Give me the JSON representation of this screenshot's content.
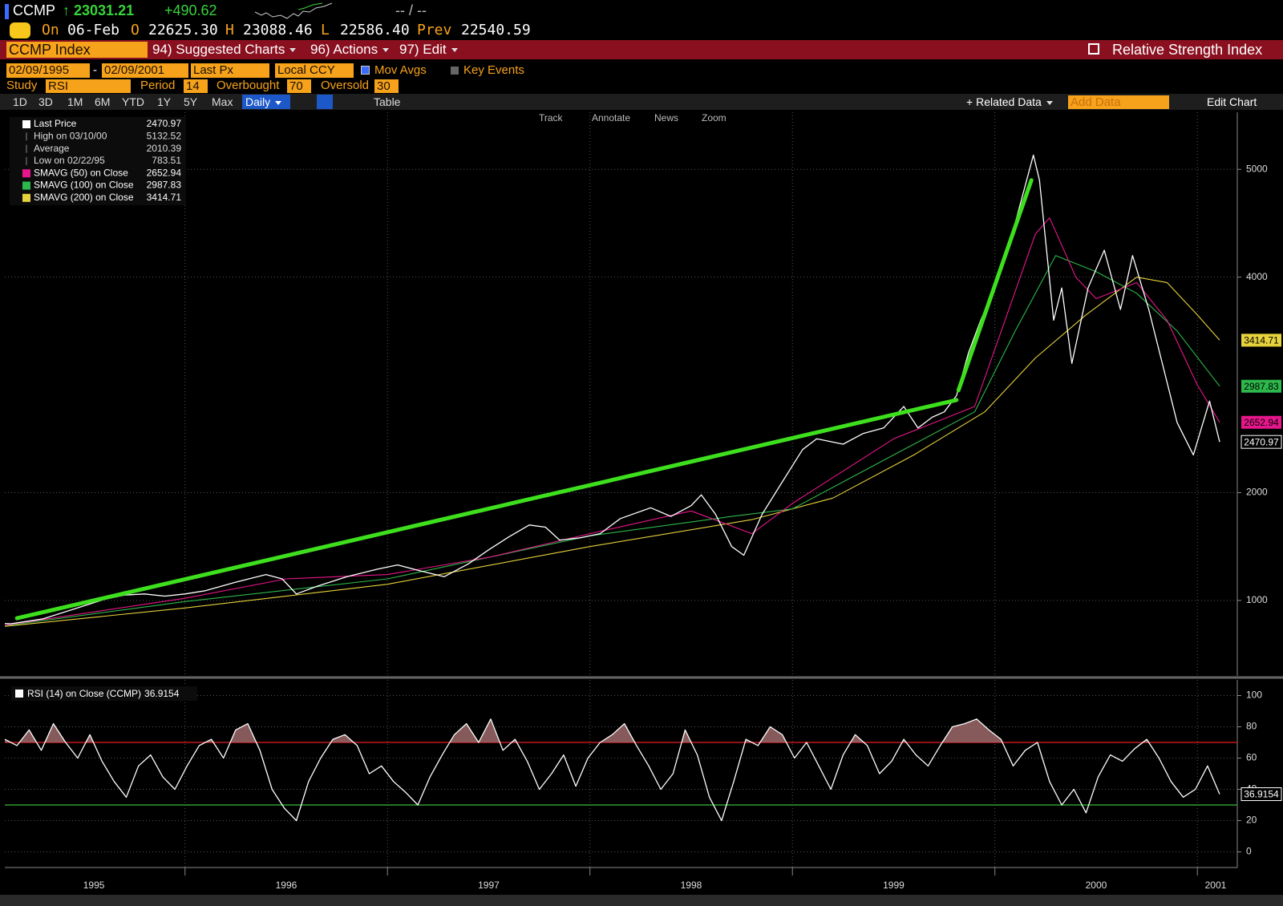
{
  "header": {
    "ticker": "CCMP",
    "price": "23031.21",
    "change": "+490.62",
    "bid_ask": "-- / --",
    "on_label": "On",
    "date": "06-Feb",
    "open_label": "O",
    "open": "22625.30",
    "high_label": "H",
    "high": "23088.46",
    "low_label": "L",
    "low": "22586.40",
    "prev_label": "Prev",
    "prev": "22540.59"
  },
  "menu": {
    "security": "CCMP Index",
    "items": [
      "94) Suggested Charts",
      "96) Actions",
      "97) Edit"
    ],
    "title": "Relative Strength Index"
  },
  "settings": {
    "start_date": "02/09/1995",
    "separator": "-",
    "end_date": "02/09/2001",
    "field": "Last Px",
    "currency": "Local CCY",
    "mov_avgs": "Mov Avgs",
    "key_events": "Key Events",
    "study_label": "Study",
    "study": "RSI",
    "period_label": "Period",
    "period": "14",
    "overbought_label": "Overbought",
    "oversold_label": "Oversold"
  },
  "toolbar": {
    "periods": [
      "1D",
      "3D",
      "1M",
      "6M",
      "YTD",
      "1Y",
      "5Y",
      "Max"
    ],
    "frequency": "Daily",
    "table": "Table",
    "related": "Related Data",
    "add_data": "Add Data",
    "edit_chart": "Edit Chart",
    "tools": [
      "Track",
      "Annotate",
      "News",
      "Zoom"
    ]
  },
  "chart_data": [
    {
      "type": "line",
      "xlim": [
        1995.11,
        2001.11
      ],
      "ylim": [
        300,
        5530
      ],
      "yticks": [
        1000,
        2000,
        4000,
        5000
      ],
      "xgrid": [
        1996,
        1997,
        1998,
        1999,
        2000,
        2001
      ],
      "grid": true,
      "last_value_labels": true,
      "series": [
        {
          "name": "Last Price",
          "color": "#ffffff",
          "x": [
            1995.11,
            1995.14,
            1995.3,
            1995.45,
            1995.6,
            1995.7,
            1995.8,
            1995.9,
            1996.0,
            1996.1,
            1996.25,
            1996.4,
            1996.48,
            1996.55,
            1996.65,
            1996.8,
            1996.95,
            1997.05,
            1997.15,
            1997.28,
            1997.4,
            1997.5,
            1997.6,
            1997.7,
            1997.78,
            1997.85,
            1997.95,
            1998.05,
            1998.15,
            1998.3,
            1998.4,
            1998.5,
            1998.55,
            1998.62,
            1998.7,
            1998.76,
            1998.85,
            1998.95,
            1999.05,
            1999.12,
            1999.25,
            1999.35,
            1999.45,
            1999.55,
            1999.62,
            1999.69,
            1999.75,
            1999.81,
            1999.87,
            1999.93,
            2000.02,
            2000.1,
            2000.19,
            2000.22,
            2000.29,
            2000.33,
            2000.38,
            2000.46,
            2000.54,
            2000.62,
            2000.68,
            2000.76,
            2000.82,
            2000.9,
            2000.98,
            2001.06,
            2001.11
          ],
          "values": [
            786,
            783.51,
            830,
            920,
            1010,
            1050,
            1060,
            1040,
            1060,
            1090,
            1170,
            1240,
            1200,
            1060,
            1130,
            1220,
            1290,
            1330,
            1280,
            1220,
            1340,
            1470,
            1590,
            1700,
            1680,
            1560,
            1580,
            1620,
            1760,
            1860,
            1780,
            1880,
            1980,
            1800,
            1500,
            1420,
            1800,
            2100,
            2400,
            2500,
            2450,
            2550,
            2600,
            2800,
            2600,
            2700,
            2750,
            2900,
            3300,
            3600,
            4000,
            4500,
            5132.52,
            4900,
            3600,
            3900,
            3200,
            3900,
            4250,
            3700,
            4200,
            3700,
            3250,
            2650,
            2350,
            2850,
            2470.97
          ]
        },
        {
          "name": "SMAVG (50)  on Close",
          "color": "#e8168c",
          "x": [
            1995.11,
            1996.0,
            1996.5,
            1997.0,
            1997.5,
            1998.0,
            1998.5,
            1998.8,
            1999.0,
            1999.5,
            1999.9,
            2000.05,
            2000.2,
            2000.27,
            2000.4,
            2000.5,
            2000.7,
            2000.85,
            2001.0,
            2001.11
          ],
          "values": [
            770,
            1020,
            1200,
            1240,
            1400,
            1620,
            1830,
            1620,
            1900,
            2500,
            2800,
            3600,
            4400,
            4550,
            4000,
            3800,
            3950,
            3600,
            3000,
            2652.94
          ]
        },
        {
          "name": "SMAVG (100)  on Close",
          "color": "#2db84b",
          "x": [
            1995.11,
            1996.0,
            1997.0,
            1998.0,
            1998.7,
            1999.0,
            1999.5,
            1999.9,
            2000.1,
            2000.3,
            2000.5,
            2000.7,
            2000.9,
            2001.11
          ],
          "values": [
            765,
            990,
            1200,
            1600,
            1780,
            1850,
            2350,
            2750,
            3500,
            4200,
            4050,
            3850,
            3500,
            2987.83
          ]
        },
        {
          "name": "SMAVG (200)  on Close",
          "color": "#e6d23c",
          "x": [
            1995.11,
            1996.0,
            1997.0,
            1998.0,
            1998.8,
            1999.2,
            1999.6,
            1999.95,
            2000.2,
            2000.45,
            2000.7,
            2000.85,
            2001.0,
            2001.11
          ],
          "values": [
            760,
            930,
            1150,
            1500,
            1750,
            1950,
            2350,
            2750,
            3250,
            3650,
            4000,
            3950,
            3650,
            3414.71
          ]
        }
      ],
      "stats": [
        {
          "label": "High on 03/10/00",
          "value": 5132.52
        },
        {
          "label": "Average",
          "value": 2010.39
        },
        {
          "label": "Low on 02/22/95",
          "value": 783.51
        }
      ],
      "trend_lines": {
        "color": "#3ee01e",
        "lines": [
          {
            "x": [
              1995.17,
              1999.81
            ],
            "values": [
              835,
              2860
            ]
          },
          {
            "x": [
              1999.82,
              2000.18
            ],
            "values": [
              2950,
              4900
            ]
          }
        ]
      }
    },
    {
      "type": "line",
      "xlim": [
        1995.11,
        2001.11
      ],
      "ylim": [
        -10,
        110
      ],
      "yticks": [
        0,
        20,
        40,
        60,
        80,
        100
      ],
      "xgrid": [
        1996,
        1997,
        1998,
        1999,
        2000,
        2001
      ],
      "grid": true,
      "last_value_labels": true,
      "xticks": [
        {
          "value": 1995.55,
          "label": "1995"
        },
        {
          "value": 1996.5,
          "label": "1996"
        },
        {
          "value": 1997.5,
          "label": "1997"
        },
        {
          "value": 1998.5,
          "label": "1998"
        },
        {
          "value": 1999.5,
          "label": "1999"
        },
        {
          "value": 2000.5,
          "label": "2000"
        },
        {
          "value": 2001.09,
          "label": "2001"
        }
      ],
      "reference_lines": [
        {
          "value": 70,
          "color": "#c0191e"
        },
        {
          "value": 30,
          "color": "#2f9a2f"
        }
      ],
      "overbought_fill": "#a87070",
      "series": [
        {
          "name": "RSI (14)  on Close (CCMP)",
          "color": "#ffffff",
          "x": [
            1995.11,
            1995.17,
            1995.23,
            1995.29,
            1995.35,
            1995.41,
            1995.47,
            1995.53,
            1995.59,
            1995.65,
            1995.71,
            1995.77,
            1995.83,
            1995.89,
            1995.95,
            1996.01,
            1996.07,
            1996.13,
            1996.19,
            1996.25,
            1996.31,
            1996.37,
            1996.43,
            1996.49,
            1996.55,
            1996.61,
            1996.67,
            1996.73,
            1996.79,
            1996.85,
            1996.91,
            1996.97,
            1997.03,
            1997.09,
            1997.15,
            1997.21,
            1997.27,
            1997.33,
            1997.39,
            1997.45,
            1997.51,
            1997.57,
            1997.63,
            1997.69,
            1997.75,
            1997.81,
            1997.87,
            1997.93,
            1997.99,
            1998.05,
            1998.11,
            1998.17,
            1998.23,
            1998.29,
            1998.35,
            1998.41,
            1998.47,
            1998.53,
            1998.59,
            1998.65,
            1998.71,
            1998.77,
            1998.83,
            1998.89,
            1998.95,
            1999.01,
            1999.07,
            1999.13,
            1999.19,
            1999.25,
            1999.31,
            1999.37,
            1999.43,
            1999.49,
            1999.55,
            1999.61,
            1999.67,
            1999.73,
            1999.79,
            1999.85,
            1999.91,
            1999.97,
            2000.03,
            2000.09,
            2000.15,
            2000.21,
            2000.27,
            2000.33,
            2000.39,
            2000.45,
            2000.51,
            2000.57,
            2000.63,
            2000.69,
            2000.75,
            2000.81,
            2000.87,
            2000.93,
            2000.99,
            2001.05,
            2001.11
          ],
          "values": [
            72,
            68,
            78,
            65,
            82,
            70,
            60,
            75,
            58,
            45,
            35,
            55,
            62,
            48,
            40,
            55,
            68,
            72,
            60,
            78,
            82,
            65,
            40,
            28,
            20,
            45,
            60,
            72,
            75,
            68,
            50,
            55,
            45,
            38,
            30,
            48,
            62,
            75,
            82,
            70,
            85,
            65,
            72,
            58,
            40,
            50,
            62,
            42,
            60,
            70,
            75,
            82,
            68,
            55,
            40,
            50,
            78,
            62,
            35,
            20,
            45,
            72,
            68,
            80,
            75,
            60,
            70,
            55,
            40,
            62,
            75,
            68,
            50,
            58,
            72,
            62,
            55,
            68,
            80,
            82,
            85,
            78,
            72,
            55,
            65,
            70,
            45,
            30,
            40,
            25,
            48,
            62,
            58,
            66,
            72,
            60,
            45,
            35,
            40,
            55,
            36.9154
          ]
        }
      ]
    }
  ]
}
